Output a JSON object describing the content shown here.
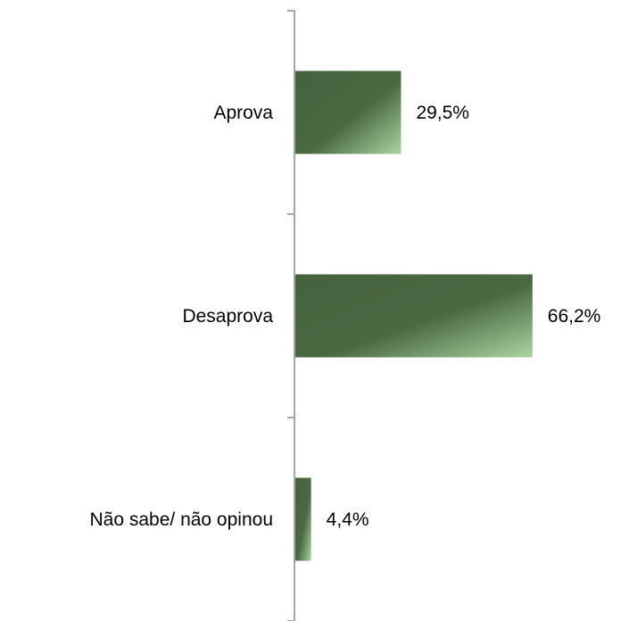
{
  "chart_data": {
    "type": "bar",
    "orientation": "horizontal",
    "categories": [
      "Aprova",
      "Desaprova",
      "Não sabe/ não opinou"
    ],
    "values": [
      29.5,
      66.2,
      4.4
    ],
    "value_labels": [
      "29,5%",
      "66,2%",
      "4,4%"
    ],
    "unit": "%",
    "xlim": [
      0,
      100
    ],
    "grid": false,
    "legend": "none",
    "bar_color_dark": "#45623e",
    "bar_color_light": "#a9d4a0",
    "axis_color": "#a6a6a6"
  }
}
